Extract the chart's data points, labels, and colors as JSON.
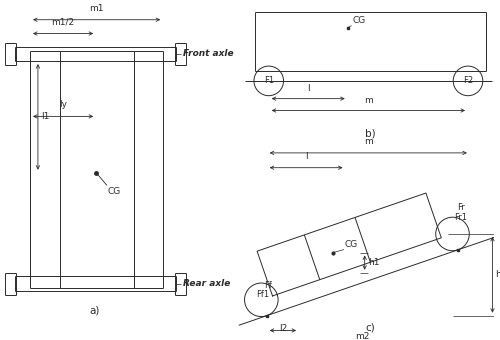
{
  "bg_color": "#ffffff",
  "line_color": "#2a2a2a",
  "font_size": 6.5,
  "fig_label_a": "a)",
  "fig_label_b": "b)",
  "fig_label_c": "c)",
  "label_front_axle": "Front axle",
  "label_rear_axle": "Rear axle",
  "label_CG_a": "CG",
  "label_CG_b": "CG",
  "label_CG_c": "CG",
  "label_m1": "m1",
  "label_m1_half": "m1/2",
  "label_ly": "ly",
  "label_l1": "l1",
  "label_l_b": "l",
  "label_m_b": "m",
  "label_F1": "F1",
  "label_F2": "F2",
  "label_l_c": "l",
  "label_m_c": "m",
  "label_m2": "m2",
  "label_l2": "l2",
  "label_h1": "h1",
  "label_h": "h",
  "label_Ff": "Ff",
  "label_Ff1": "Ff1",
  "label_Fr": "Fr",
  "label_Fr1": "Fr1"
}
